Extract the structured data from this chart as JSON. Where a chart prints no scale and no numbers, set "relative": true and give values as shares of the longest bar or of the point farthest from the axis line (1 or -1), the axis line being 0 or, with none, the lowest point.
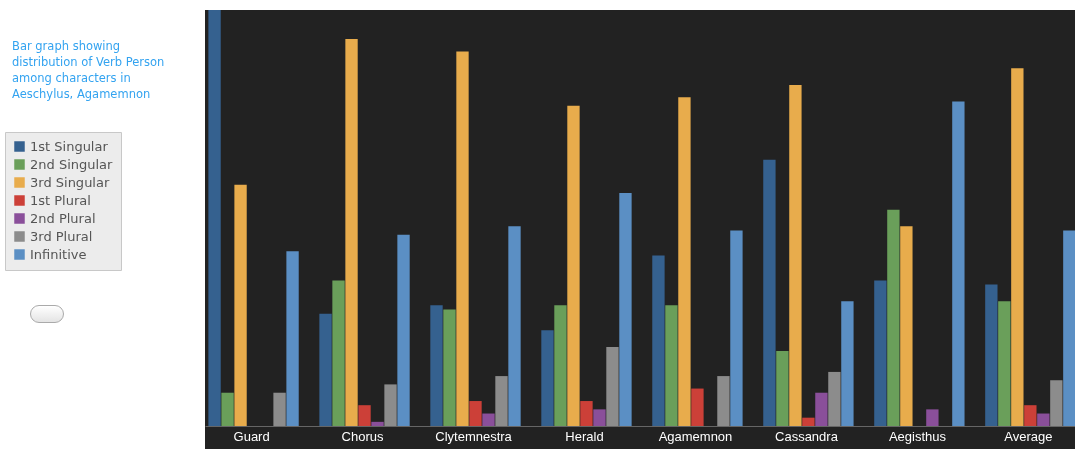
{
  "chart_data": {
    "type": "bar",
    "title": "Bar graph showing distribution of Verb Person among characters in Aeschylus, Agamemnon",
    "relative": true,
    "legend": "left",
    "categories": [
      "Guard",
      "Chorus",
      "Clytemnestra",
      "Herald",
      "Agamemnon",
      "Cassandra",
      "Aegisthus",
      "Average"
    ],
    "series": [
      {
        "name": "1st Singular",
        "color": "#35618f",
        "values": [
          1.0,
          0.27,
          0.29,
          0.23,
          0.41,
          0.64,
          0.35,
          0.34
        ]
      },
      {
        "name": "2nd Singular",
        "color": "#6a9f5a",
        "values": [
          0.08,
          0.35,
          0.28,
          0.29,
          0.29,
          0.18,
          0.52,
          0.3
        ]
      },
      {
        "name": "3rd Singular",
        "color": "#e8ac4c",
        "values": [
          0.58,
          0.93,
          0.9,
          0.77,
          0.79,
          0.82,
          0.48,
          0.86
        ]
      },
      {
        "name": "1st Plural",
        "color": "#cc4038",
        "values": [
          null,
          0.05,
          0.06,
          0.06,
          0.09,
          0.02,
          null,
          0.05
        ]
      },
      {
        "name": "2nd Plural",
        "color": "#8a4f9a",
        "values": [
          null,
          0.01,
          0.03,
          0.04,
          null,
          0.08,
          0.04,
          0.03
        ]
      },
      {
        "name": "3rd Plural",
        "color": "#8c8c8c",
        "values": [
          0.08,
          0.1,
          0.12,
          0.19,
          0.12,
          0.13,
          null,
          0.11
        ]
      },
      {
        "name": "Infinitive",
        "color": "#5b8fc4",
        "values": [
          0.42,
          0.46,
          0.48,
          0.56,
          0.47,
          0.3,
          0.78,
          0.47
        ]
      }
    ]
  }
}
